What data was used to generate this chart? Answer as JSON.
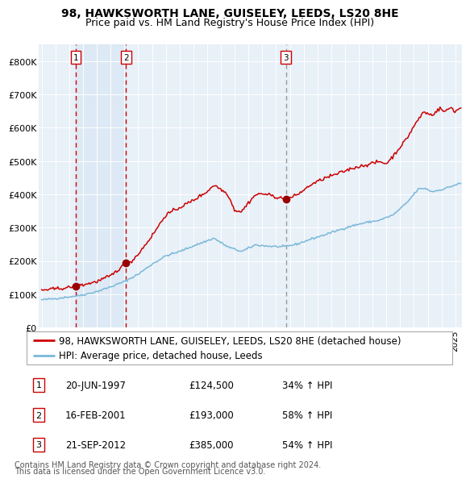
{
  "title": "98, HAWKSWORTH LANE, GUISELEY, LEEDS, LS20 8HE",
  "subtitle": "Price paid vs. HM Land Registry's House Price Index (HPI)",
  "legend_line1": "98, HAWKSWORTH LANE, GUISELEY, LEEDS, LS20 8HE (detached house)",
  "legend_line2": "HPI: Average price, detached house, Leeds",
  "footnote1": "Contains HM Land Registry data © Crown copyright and database right 2024.",
  "footnote2": "This data is licensed under the Open Government Licence v3.0.",
  "sales": [
    {
      "label": "1",
      "date": "20-JUN-1997",
      "price": 124500,
      "year": 1997.47,
      "pct": "34%",
      "arrow": "↑"
    },
    {
      "label": "2",
      "date": "16-FEB-2001",
      "price": 193000,
      "year": 2001.12,
      "pct": "58%",
      "arrow": "↑"
    },
    {
      "label": "3",
      "date": "21-SEP-2012",
      "price": 385000,
      "year": 2012.72,
      "pct": "54%",
      "arrow": "↑"
    }
  ],
  "hpi_color": "#7ab8d9",
  "price_color": "#cc0000",
  "sale_marker_color": "#990000",
  "vline_color_red": "#cc0000",
  "vline_color_gray": "#999999",
  "plot_bg": "#e8f0f8",
  "ylim": [
    0,
    850000
  ],
  "yticks": [
    0,
    100000,
    200000,
    300000,
    400000,
    500000,
    600000,
    700000,
    800000
  ],
  "ytick_labels": [
    "£0",
    "£100K",
    "£200K",
    "£300K",
    "£400K",
    "£500K",
    "£600K",
    "£700K",
    "£800K"
  ],
  "xmin": 1994.8,
  "xmax": 2025.5,
  "title_fontsize": 10,
  "subtitle_fontsize": 9,
  "axis_fontsize": 8,
  "legend_fontsize": 8.5,
  "footnote_fontsize": 7,
  "table_fontsize": 8.5
}
